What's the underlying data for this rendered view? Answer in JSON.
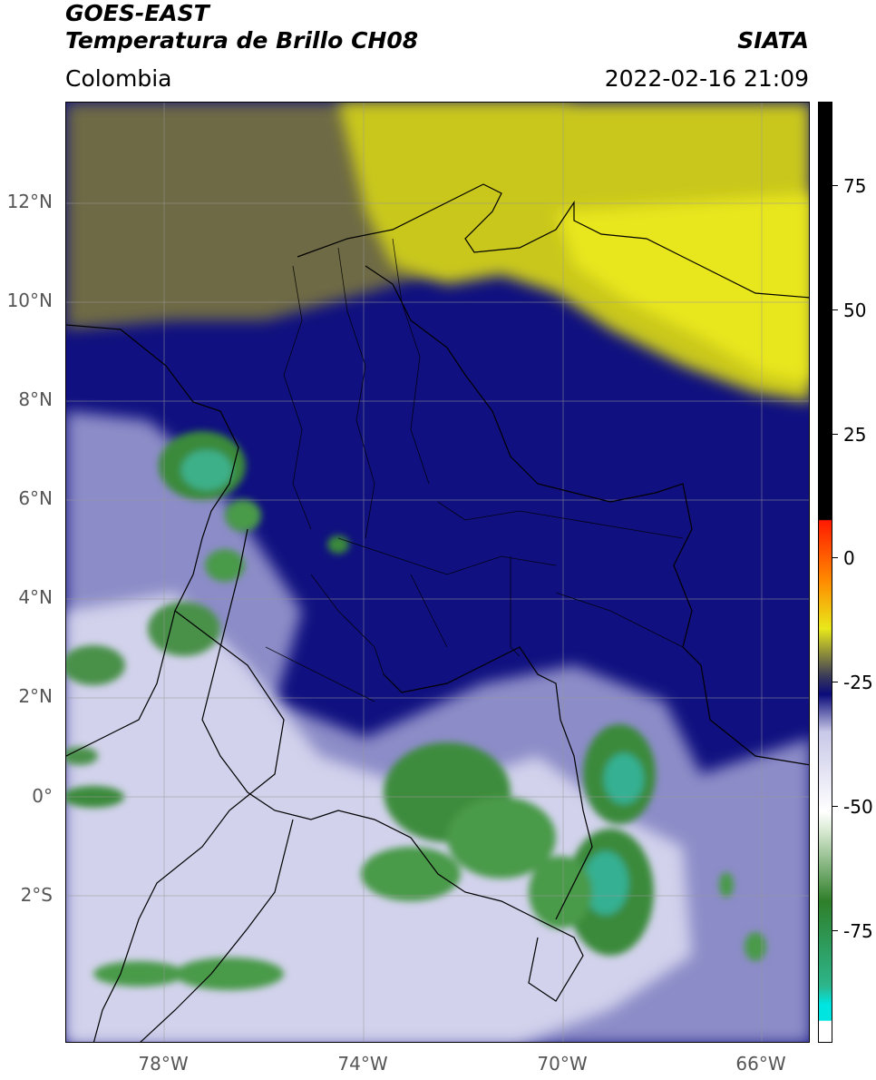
{
  "header": {
    "satellite": "GOES-EAST",
    "product": "Temperatura de Brillo CH08",
    "region": "Colombia",
    "source": "SIATA",
    "datetime": "2022-02-16 21:09"
  },
  "axes": {
    "lat_labels": [
      "12°N",
      "10°N",
      "8°N",
      "6°N",
      "4°N",
      "2°N",
      "0°",
      "2°S"
    ],
    "lon_labels": [
      "78°W",
      "74°W",
      "70°W",
      "66°W"
    ]
  },
  "colorbar": {
    "labels": [
      "75",
      "50",
      "25",
      "0",
      "-25",
      "-50",
      "-75"
    ],
    "colors": {
      "white": "#ffffff",
      "cyan": "#00e5e0",
      "teal": "#2db58a",
      "green": "#2f7f2a",
      "pale_green": "#d9ead3",
      "light_purple": "#c8c8e8",
      "navy": "#0a0a7a",
      "olive_gray": "#6b6b4a",
      "yellow": "#e8e81a",
      "orange": "#ff8c00",
      "red": "#ff1a00",
      "black": "#000000"
    }
  }
}
